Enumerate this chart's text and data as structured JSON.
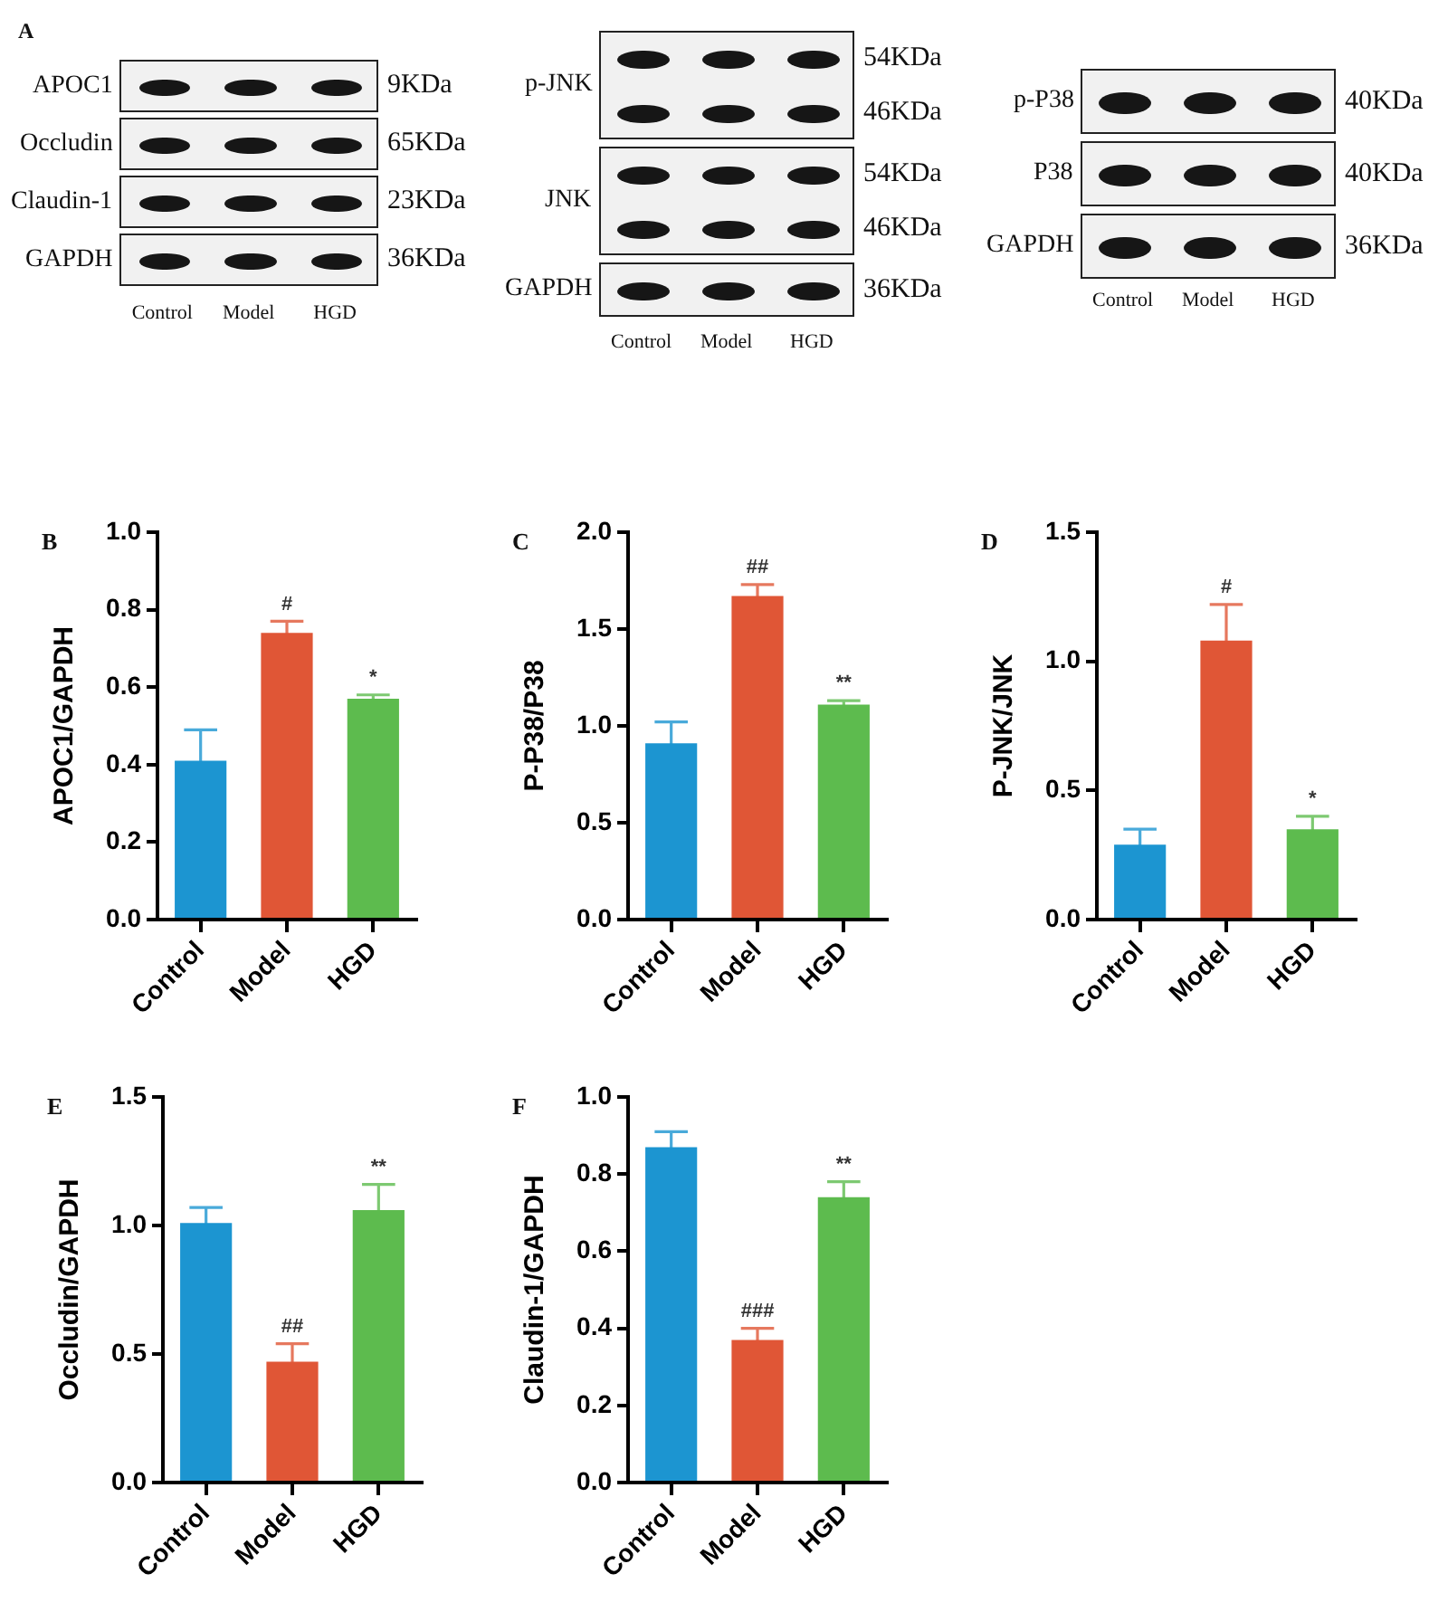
{
  "chart_data": [
    {
      "type": "other",
      "title": "A",
      "categories": [
        "Control",
        "Model",
        "HGD"
      ],
      "y_categories": [
        "APOC1",
        "Occludin",
        "Claudin-1",
        "GAPDH"
      ],
      "y2_categories": [
        "9KDa",
        "65KDa",
        "23KDa",
        "36KDa"
      ]
    },
    {
      "type": "other",
      "categories": [
        "Control",
        "Model",
        "HGD"
      ],
      "y_categories": [
        "p-JNK",
        null,
        "JNK",
        null,
        "GAPDH"
      ],
      "y2_categories": [
        "54KDa",
        "46KDa",
        "54KDa",
        "46KDa",
        "36KDa"
      ]
    },
    {
      "type": "other",
      "categories": [
        "Control",
        "Model",
        "HGD"
      ],
      "y_categories": [
        "p-P38",
        "P38",
        "GAPDH"
      ],
      "y2_categories": [
        "40KDa",
        "40KDa",
        "36KDa"
      ]
    },
    {
      "type": "bar",
      "title": "B",
      "categories": [
        "Control",
        "Model",
        "HGD"
      ],
      "values": [
        0.41,
        0.74,
        0.57
      ],
      "errors": [
        0.08,
        0.03,
        0.01
      ],
      "colors": [
        "#1c95d1",
        "#e05636",
        "#5dbb4e"
      ],
      "ylabel": "APOC1/GAPDH",
      "ylim": [
        0,
        1
      ],
      "yticks": [
        {
          "value": 0,
          "label": "0.0"
        },
        0.2,
        0.4,
        0.6,
        0.8,
        {
          "value": 1,
          "label": "1.0"
        }
      ],
      "annotations": [
        {
          "text": "#",
          "x": "Model",
          "y": 0.77
        },
        {
          "text": "*",
          "x": "HGD",
          "y": 0.58
        }
      ]
    },
    {
      "type": "bar",
      "title": "C",
      "categories": [
        "Control",
        "Model",
        "HGD"
      ],
      "values": [
        0.91,
        1.67,
        1.11
      ],
      "errors": [
        0.11,
        0.06,
        0.02
      ],
      "colors": [
        "#1c95d1",
        "#e05636",
        "#5dbb4e"
      ],
      "ylabel": "P-P38/P38",
      "ylim": [
        0,
        2
      ],
      "yticks": [
        {
          "value": 0,
          "label": "0.0"
        },
        0.5,
        {
          "value": 1,
          "label": "1.0"
        },
        1.5,
        {
          "value": 2,
          "label": "2.0"
        }
      ],
      "annotations": [
        {
          "text": "##",
          "x": "Model",
          "y": 1.73
        },
        {
          "text": "**",
          "x": "HGD",
          "y": 1.13
        }
      ]
    },
    {
      "type": "bar",
      "title": "D",
      "categories": [
        "Control",
        "Model",
        "HGD"
      ],
      "values": [
        0.29,
        1.08,
        0.35
      ],
      "errors": [
        0.06,
        0.14,
        0.05
      ],
      "colors": [
        "#1c95d1",
        "#e05636",
        "#5dbb4e"
      ],
      "ylabel": "P-JNK/JNK",
      "ylim": [
        0,
        1.5
      ],
      "yticks": [
        {
          "value": 0,
          "label": "0.0"
        },
        0.5,
        {
          "value": 1,
          "label": "1.0"
        },
        1.5
      ],
      "annotations": [
        {
          "text": "#",
          "x": "Model",
          "y": 1.22
        },
        {
          "text": "*",
          "x": "HGD",
          "y": 0.4
        }
      ]
    },
    {
      "type": "bar",
      "title": "E",
      "categories": [
        "Control",
        "Model",
        "HGD"
      ],
      "values": [
        1.01,
        0.47,
        1.06
      ],
      "errors": [
        0.06,
        0.07,
        0.1
      ],
      "colors": [
        "#1c95d1",
        "#e05636",
        "#5dbb4e"
      ],
      "ylabel": "Occludin/GAPDH",
      "ylim": [
        0,
        1.5
      ],
      "yticks": [
        {
          "value": 0,
          "label": "0.0"
        },
        0.5,
        {
          "value": 1,
          "label": "1.0"
        },
        1.5
      ],
      "annotations": [
        {
          "text": "##",
          "x": "Model",
          "y": 0.54
        },
        {
          "text": "**",
          "x": "HGD",
          "y": 1.16
        }
      ]
    },
    {
      "type": "bar",
      "title": "F",
      "categories": [
        "Control",
        "Model",
        "HGD"
      ],
      "values": [
        0.87,
        0.37,
        0.74
      ],
      "errors": [
        0.04,
        0.03,
        0.04
      ],
      "colors": [
        "#1c95d1",
        "#e05636",
        "#5dbb4e"
      ],
      "ylabel": "Claudin-1/GAPDH",
      "ylim": [
        0,
        1
      ],
      "yticks": [
        {
          "value": 0,
          "label": "0.0"
        },
        0.2,
        0.4,
        0.6,
        0.8,
        {
          "value": 1,
          "label": "1.0"
        }
      ],
      "annotations": [
        {
          "text": "###",
          "x": "Model",
          "y": 0.4
        },
        {
          "text": "**",
          "x": "HGD",
          "y": 0.78
        }
      ]
    }
  ]
}
